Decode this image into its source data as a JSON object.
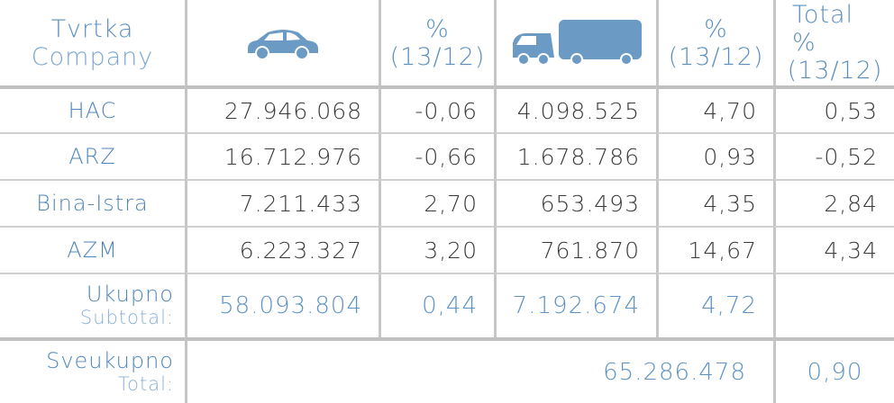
{
  "header": {
    "company": {
      "line1": "Tvrtka",
      "line2": "Company"
    },
    "pct_cars": {
      "line1": "%",
      "line2": "(13/12)"
    },
    "pct_trucks": {
      "line1": "%",
      "line2": "(13/12)"
    },
    "pct_total": {
      "line1": "Total %",
      "line2": "(13/12)"
    }
  },
  "table": {
    "rows": [
      [
        "HAC",
        "27.946.068",
        "-0,06",
        "4.098.525",
        "4,70",
        "0,53"
      ],
      [
        "ARZ",
        "16.712.976",
        "-0,66",
        "1.678.786",
        "0,93",
        "-0,52"
      ],
      [
        "Bina-Istra",
        "7.211.433",
        "2,70",
        "653.493",
        "4,35",
        "2,84"
      ],
      [
        "AZM",
        "6.223.327",
        "3,20",
        "761.870",
        "14,67",
        "4,34"
      ]
    ]
  },
  "subtotal": {
    "label1": "Ukupno",
    "label2": "Subtotal:",
    "values": [
      "58.093.804",
      "0,44",
      "7.192.674",
      "4,72"
    ]
  },
  "total": {
    "label1": "Sveukupno",
    "label2": "Total:",
    "value": "65.286.478",
    "pct": "0,90"
  }
}
